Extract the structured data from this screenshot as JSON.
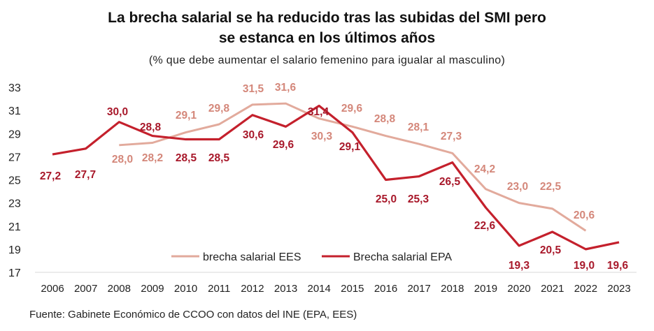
{
  "chart_data": {
    "type": "line",
    "title": "La brecha salarial se ha reducido tras las subidas del SMI pero se estanca en los últimos años",
    "title_lines": [
      "La brecha salarial se ha reducido tras las subidas del SMI pero",
      "se estanca en los últimos años"
    ],
    "subtitle": "(% que debe aumentar el salario femenino para igualar al masculino)",
    "source": "Fuente: Gabinete Económico de CCOO con datos del INE (EPA, EES)",
    "x": [
      "2006",
      "2007",
      "2008",
      "2009",
      "2010",
      "2011",
      "2012",
      "2013",
      "2014",
      "2015",
      "2016",
      "2017",
      "2018",
      "2019",
      "2020",
      "2021",
      "2022",
      "2023"
    ],
    "ylim": [
      17,
      33
    ],
    "yticks": [
      "17",
      "19",
      "21",
      "23",
      "25",
      "27",
      "29",
      "31",
      "33"
    ],
    "grid": false,
    "legend_position": "bottom-center",
    "series": [
      {
        "name": "brecha salarial EES",
        "color": "#e2aa9c",
        "label_color": "#d4877a",
        "values": [
          null,
          null,
          28.0,
          28.2,
          29.1,
          29.8,
          31.5,
          31.6,
          30.3,
          29.6,
          28.8,
          28.1,
          27.3,
          24.2,
          23.0,
          22.5,
          20.6,
          null
        ],
        "labels": [
          null,
          null,
          "28,0",
          "28,2",
          "29,1",
          "29,8",
          "31,5",
          "31,6",
          "30,3",
          "29,6",
          "28,8",
          "28,1",
          "27,3",
          "24,2",
          "23,0",
          "22,5",
          "20,6",
          null
        ]
      },
      {
        "name": "Brecha salarial EPA",
        "color": "#c4202c",
        "label_color": "#a8182a",
        "values": [
          27.2,
          27.7,
          30.0,
          28.8,
          28.5,
          28.5,
          30.6,
          29.6,
          31.4,
          29.1,
          25.0,
          25.3,
          26.5,
          22.6,
          19.3,
          20.5,
          19.0,
          19.6
        ],
        "labels": [
          "27,2",
          "27,7",
          "30,0",
          "28,8",
          "28,5",
          "28,5",
          "30,6",
          "29,6",
          "31,4",
          "29,1",
          "25,0",
          "25,3",
          "26,5",
          "22,6",
          "19,3",
          "20,5",
          "19,0",
          "19,6"
        ]
      }
    ]
  }
}
